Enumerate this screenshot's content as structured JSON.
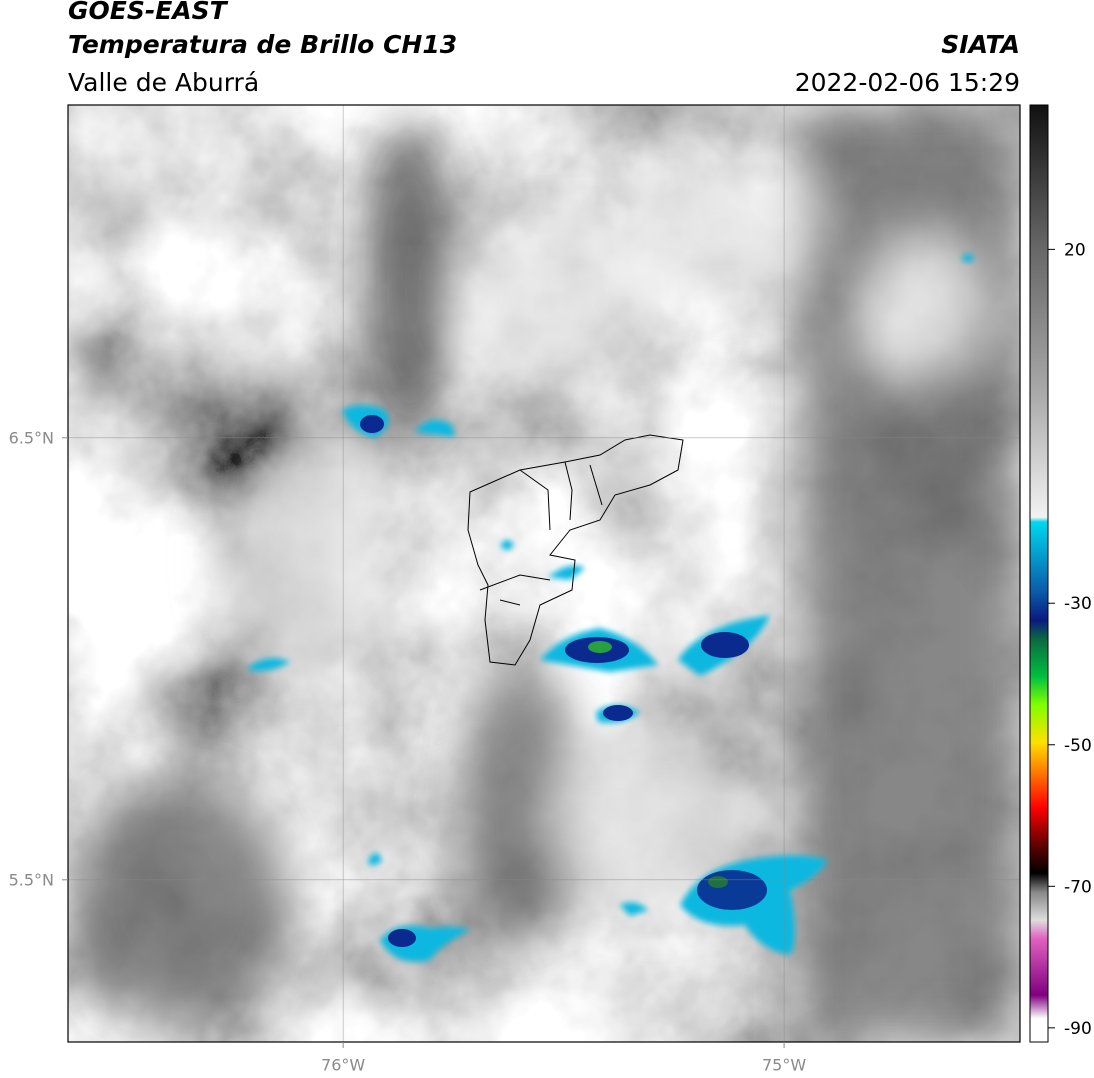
{
  "header": {
    "title": "GOES-EAST",
    "subtitle": "Temperatura de Brillo CH13",
    "region": "Valle de Aburrá",
    "source": "SIATA",
    "datetime": "2022-02-06 15:29"
  },
  "map": {
    "xlim": [
      -76.624,
      -74.465
    ],
    "ylim": [
      5.133,
      7.253
    ],
    "xticks": [
      {
        "value": -76,
        "label": "76°W"
      },
      {
        "value": -75,
        "label": "75°W"
      }
    ],
    "yticks": [
      {
        "value": 6.5,
        "label": "6.5°N"
      },
      {
        "value": 5.5,
        "label": "5.5°N"
      }
    ],
    "grid": true
  },
  "colorbar": {
    "lim": [
      -92,
      40.4
    ],
    "ticks": [
      20,
      -30,
      -50,
      -70,
      -90
    ]
  }
}
